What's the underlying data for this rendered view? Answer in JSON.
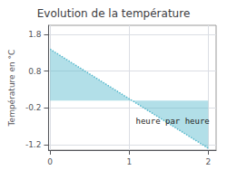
{
  "chart_data": {
    "type": "area",
    "title": "Evolution de la température",
    "ylabel": "Température en °C",
    "annotations": [
      {
        "text": "heure par heure",
        "x": 1.55,
        "y": -0.55
      }
    ],
    "x": [
      0,
      2
    ],
    "values": [
      1.4,
      -1.3
    ],
    "color": "#55b8cc",
    "line_style": "dotted",
    "xlim": [
      -0.02,
      2.1
    ],
    "ylim": [
      -1.35,
      2.05
    ],
    "xticks": [
      0,
      1,
      2
    ],
    "yticks": [
      -1.2,
      -0.2,
      0.8,
      1.8
    ],
    "grid": true
  }
}
